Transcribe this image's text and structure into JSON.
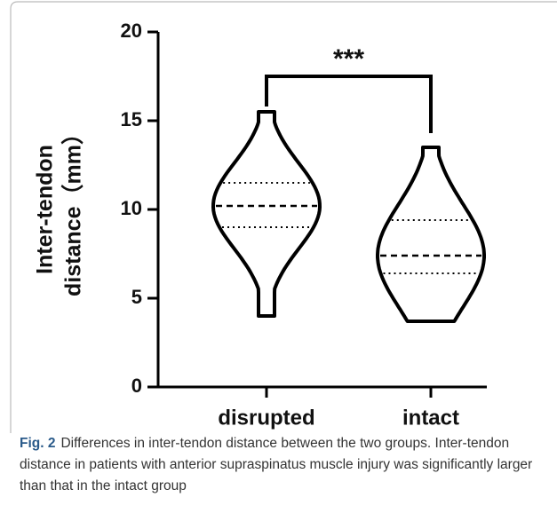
{
  "chart_data": {
    "type": "violin",
    "y_label_lines": [
      "Inter-tendon",
      "distance（mm）"
    ],
    "categories": [
      "disrupted",
      "intact"
    ],
    "violins": [
      {
        "min": 4.0,
        "q1": 9.0,
        "median": 10.2,
        "q3": 11.5,
        "max": 15.5
      },
      {
        "min": 3.7,
        "q1": 6.4,
        "median": 7.4,
        "q3": 9.4,
        "max": 13.5
      }
    ],
    "color": "#000000",
    "ylim": [
      0,
      20
    ],
    "yticks": [
      0,
      5,
      10,
      15,
      20
    ],
    "significance": {
      "label": "***",
      "y": 17.5,
      "y_left": 15.8,
      "y_right": 14.3
    },
    "caption": {
      "label": "Fig. 2",
      "text": "Differences in inter-tendon distance between the two groups. Inter-tendon distance in patients with anterior supraspinatus muscle injury was significantly larger than that in the intact group"
    }
  }
}
